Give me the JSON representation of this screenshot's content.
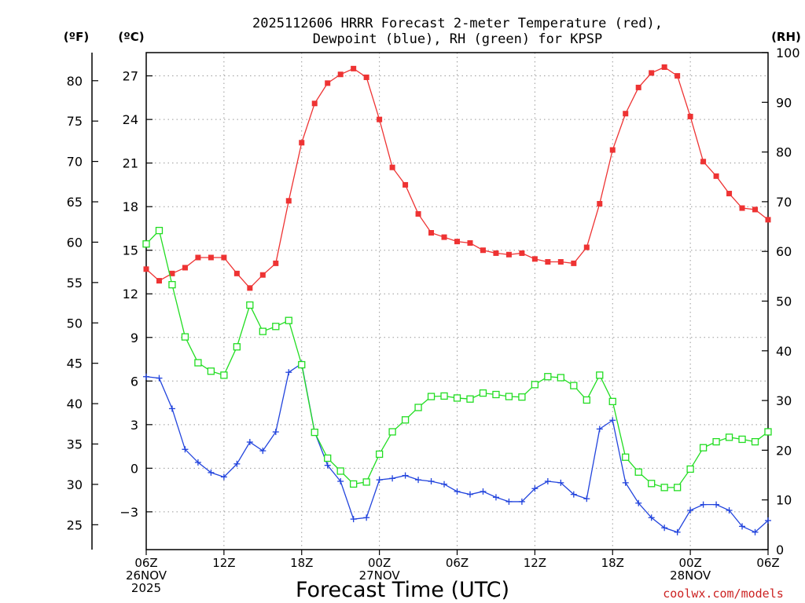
{
  "title": [
    "2025112606 HRRR Forecast 2-meter Temperature (red),",
    "Dewpoint (blue), RH (green) for KPSP"
  ],
  "xlabel": "Forecast Time (UTC)",
  "credit": "coolwx.com/models",
  "unit_f": "(ºF)",
  "unit_c": "(ºC)",
  "unit_rh": "(RH)",
  "colors": {
    "temperature": "#ee3333",
    "dewpoint": "#2244dd",
    "rh": "#22dd22",
    "grid": "#999999",
    "credit": "#cc2222"
  },
  "chart_data": {
    "type": "line",
    "x": [
      0,
      1,
      2,
      3,
      4,
      5,
      6,
      7,
      8,
      9,
      10,
      11,
      12,
      13,
      14,
      15,
      16,
      17,
      18,
      19,
      20,
      21,
      22,
      23,
      24,
      25,
      26,
      27,
      28,
      29,
      30,
      31,
      32,
      33,
      34,
      35,
      36,
      37,
      38,
      39,
      40,
      41,
      42,
      43,
      44,
      45,
      46,
      47,
      48
    ],
    "xunit": "forecast hour (from 2025112606)",
    "xlim": [
      0,
      48
    ],
    "x_ticks": [
      {
        "hour": 0,
        "lines": [
          "06Z",
          "26NOV",
          "2025"
        ]
      },
      {
        "hour": 6,
        "lines": [
          "12Z"
        ]
      },
      {
        "hour": 12,
        "lines": [
          "18Z"
        ]
      },
      {
        "hour": 18,
        "lines": [
          "00Z",
          "27NOV"
        ]
      },
      {
        "hour": 24,
        "lines": [
          "06Z"
        ]
      },
      {
        "hour": 30,
        "lines": [
          "12Z"
        ]
      },
      {
        "hour": 36,
        "lines": [
          "18Z"
        ]
      },
      {
        "hour": 42,
        "lines": [
          "00Z",
          "28NOV"
        ]
      },
      {
        "hour": 48,
        "lines": [
          "06Z"
        ]
      }
    ],
    "ylim_c": [
      -5.6,
      28.6
    ],
    "ylim_rh": [
      0,
      100
    ],
    "yticks_c": [
      -3,
      0,
      3,
      6,
      9,
      12,
      15,
      18,
      21,
      24,
      27
    ],
    "yticks_f": [
      25,
      30,
      35,
      40,
      45,
      50,
      55,
      60,
      65,
      70,
      75,
      80
    ],
    "yticks_rh": [
      0,
      10,
      20,
      30,
      40,
      50,
      60,
      70,
      80,
      90,
      100
    ],
    "grid": true,
    "series": [
      {
        "name": "Temperature",
        "axis": "celsius",
        "color": "#ee3333",
        "marker": "filled-square",
        "values": [
          13.7,
          12.9,
          13.4,
          13.8,
          14.5,
          14.5,
          14.5,
          13.4,
          12.4,
          13.3,
          14.1,
          18.4,
          22.4,
          25.1,
          26.5,
          27.1,
          27.5,
          26.9,
          24.0,
          20.7,
          19.5,
          17.5,
          16.2,
          15.9,
          15.6,
          15.5,
          15.0,
          14.8,
          14.7,
          14.8,
          14.4,
          14.2,
          14.2,
          14.1,
          15.2,
          18.2,
          21.9,
          24.4,
          26.2,
          27.2,
          27.6,
          27.0,
          24.2,
          21.1,
          20.1,
          18.9,
          17.9,
          17.8,
          17.1
        ]
      },
      {
        "name": "Dewpoint",
        "axis": "celsius",
        "color": "#2244dd",
        "marker": "plus",
        "values": [
          6.3,
          6.2,
          4.1,
          1.3,
          0.4,
          -0.3,
          -0.6,
          0.3,
          1.8,
          1.2,
          2.5,
          6.6,
          7.2,
          2.5,
          0.2,
          -0.9,
          -3.5,
          -3.4,
          -0.8,
          -0.7,
          -0.5,
          -0.8,
          -0.9,
          -1.1,
          -1.6,
          -1.8,
          -1.6,
          -2.0,
          -2.3,
          -2.3,
          -1.4,
          -0.9,
          -1.0,
          -1.8,
          -2.1,
          2.7,
          3.3,
          -1.0,
          -2.4,
          -3.4,
          -4.1,
          -4.4,
          -2.9,
          -2.5,
          -2.5,
          -2.9,
          -4.0,
          -4.4,
          -3.6
        ]
      },
      {
        "name": "RH",
        "axis": "rh",
        "color": "#22dd22",
        "marker": "open-square",
        "values": [
          61.5,
          64.2,
          53.3,
          42.8,
          37.6,
          35.9,
          35.1,
          40.8,
          49.2,
          43.9,
          44.9,
          46.1,
          37.2,
          23.6,
          18.4,
          15.8,
          13.2,
          13.6,
          19.2,
          23.7,
          26.1,
          28.6,
          30.8,
          30.9,
          30.5,
          30.3,
          31.5,
          31.2,
          30.8,
          30.7,
          33.2,
          34.8,
          34.6,
          33.0,
          30.1,
          35.1,
          29.8,
          18.6,
          15.6,
          13.3,
          12.5,
          12.5,
          16.2,
          20.5,
          21.7,
          22.6,
          22.2,
          21.7,
          23.7
        ]
      }
    ]
  }
}
